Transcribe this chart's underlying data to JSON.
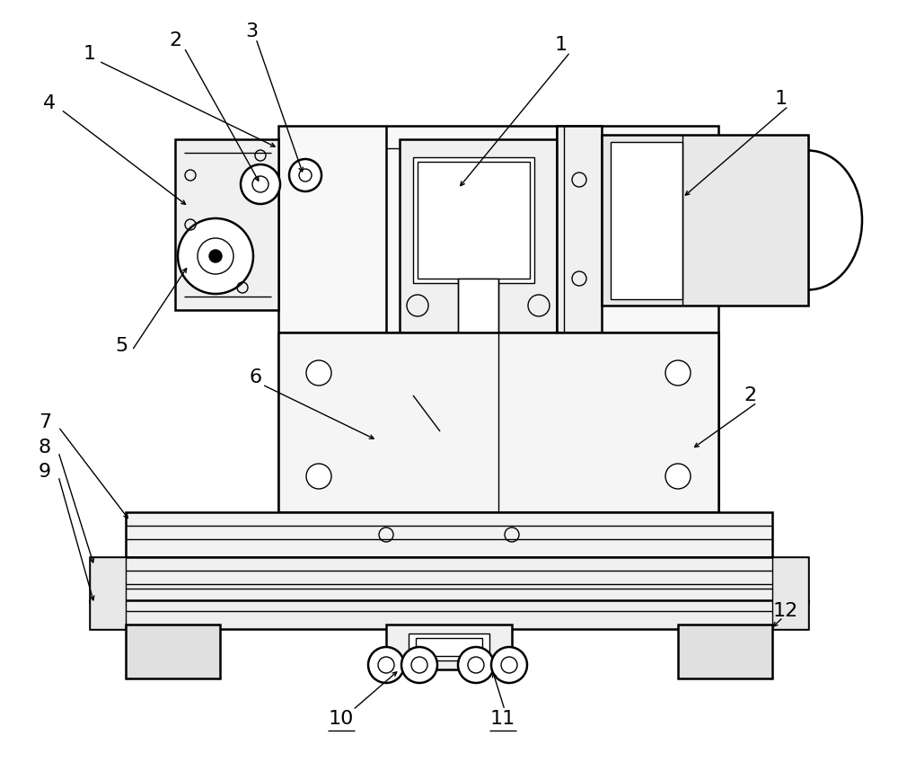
{
  "bg_color": "#ffffff",
  "lc": "#000000",
  "lw": 1.0,
  "tlw": 1.8,
  "fig_width": 10.0,
  "fig_height": 8.58,
  "dpi": 100
}
